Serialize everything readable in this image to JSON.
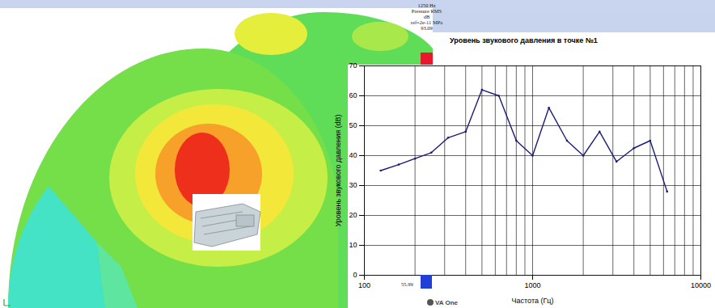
{
  "chart_data": {
    "type": "line",
    "title": "Уровень звукового давления в точке №1",
    "x_label": "Частота (Гц)",
    "y_label": "Уровень звукового давления (dB)",
    "x": [
      125,
      160,
      200,
      250,
      315,
      400,
      500,
      630,
      800,
      1000,
      1250,
      1600,
      2000,
      2500,
      3150,
      4000,
      5000,
      6300
    ],
    "values": [
      35,
      37,
      39,
      41,
      46,
      48,
      62,
      60,
      45,
      40,
      56,
      45,
      40,
      48,
      38,
      42.5,
      45,
      28
    ],
    "color": "#1c1c78",
    "marker": "dot",
    "log": "x",
    "xlim": [
      100,
      10000
    ],
    "xticks": [
      100,
      1000,
      10000
    ],
    "ylim": [
      0,
      70
    ],
    "yticks": [
      0,
      10,
      20,
      30,
      40,
      50,
      60,
      70
    ],
    "grid": true
  },
  "contour_plot": {
    "colorbar": {
      "labels": [
        "1250 Hz",
        "Pressure RMS",
        "dB",
        "ref=2e-11 MPa"
      ],
      "max": 93.09,
      "min": 55.99,
      "colors": [
        "#e8192c",
        "#1f3fd6"
      ]
    },
    "logo": "VA One"
  }
}
